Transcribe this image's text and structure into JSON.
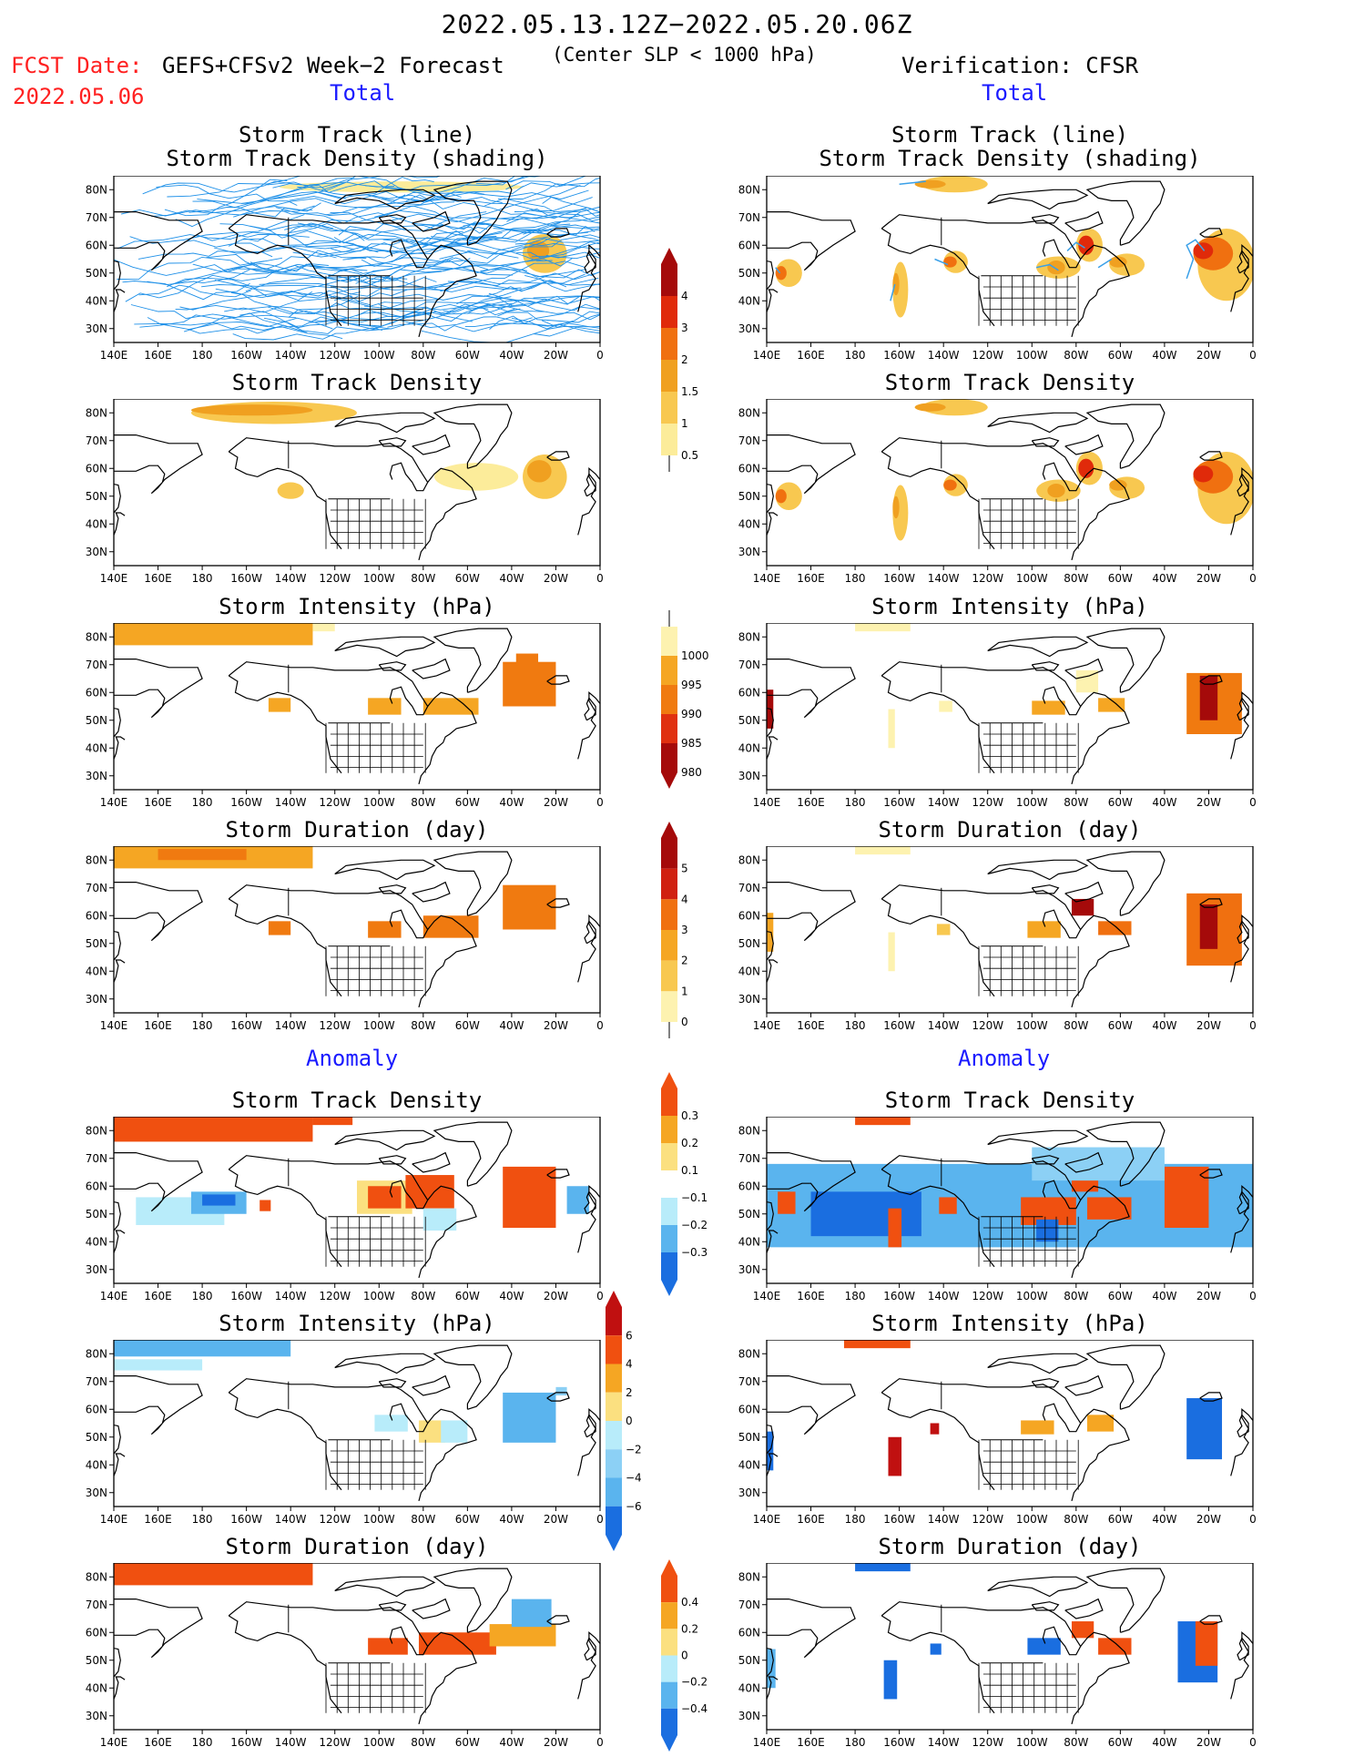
{
  "header": {
    "period": "2022.05.13.12Z−2022.05.20.06Z",
    "fcst_label": "FCST Date:",
    "fcst_date": "2022.05.06",
    "forecast_model": "GEFS+CFSv2 Week−2 Forecast",
    "criterion": "(Center SLP < 1000 hPa)",
    "verification": "Verification: CFSR"
  },
  "section_labels": {
    "total": "Total",
    "anomaly": "Anomaly"
  },
  "map_axes": {
    "lon_ticks": [
      "140E",
      "160E",
      "180",
      "160W",
      "140W",
      "120W",
      "100W",
      "80W",
      "60W",
      "40W",
      "20W",
      "0"
    ],
    "lat_ticks": [
      "80N",
      "70N",
      "60N",
      "50N",
      "40N",
      "30N"
    ]
  },
  "colorbars": {
    "density": {
      "ticks": [
        "4",
        "3",
        "2",
        "1.5",
        "1",
        "0.5"
      ],
      "colors": [
        "#a50a0a",
        "#e02a0a",
        "#f07010",
        "#f0a020",
        "#f8c850",
        "#fcec9a"
      ]
    },
    "intensity": {
      "ticks": [
        "1000",
        "995",
        "990",
        "985",
        "980"
      ],
      "colors": [
        "#fdf2b0",
        "#f5a623",
        "#f07a10",
        "#e03010",
        "#a50a0a"
      ]
    },
    "duration": {
      "ticks": [
        "5",
        "4",
        "3",
        "2",
        "1",
        "0"
      ],
      "colors": [
        "#a50a0a",
        "#d02010",
        "#f07010",
        "#f5a623",
        "#f8c850",
        "#fdf2b0"
      ]
    },
    "density_anom": {
      "ticks": [
        "0.3",
        "0.2",
        "0.1",
        "−0.1",
        "−0.2",
        "−0.3"
      ],
      "colors": [
        "#f05010",
        "#f5a623",
        "#fbe080",
        "#ffffff",
        "#b8ecfa",
        "#5ab4ee",
        "#1a6ee0"
      ]
    },
    "intensity_anom": {
      "ticks": [
        "6",
        "4",
        "2",
        "0",
        "−2",
        "−4",
        "−6"
      ],
      "colors": [
        "#c01010",
        "#f05010",
        "#f5a623",
        "#fbe080",
        "#b8ecfa",
        "#8cd0f5",
        "#5ab4ee",
        "#1a6ee0"
      ]
    },
    "duration_anom": {
      "ticks": [
        "0.4",
        "0.2",
        "0",
        "−0.2",
        "−0.4"
      ],
      "colors": [
        "#f05010",
        "#f5a623",
        "#fbe080",
        "#b8ecfa",
        "#5ab4ee",
        "#1a6ee0"
      ]
    }
  },
  "panels": {
    "fc_track": {
      "title1": "Storm Track (line)",
      "title2": "Storm Track Density (shading)"
    },
    "ob_track": {
      "title1": "Storm Track (line)",
      "title2": "Storm Track Density (shading)"
    },
    "fc_density": {
      "title1": "Storm Track Density"
    },
    "ob_density": {
      "title1": "Storm Track Density"
    },
    "fc_intensity": {
      "title1": "Storm Intensity (hPa)"
    },
    "ob_intensity": {
      "title1": "Storm Intensity (hPa)"
    },
    "fc_duration": {
      "title1": "Storm Duration (day)"
    },
    "ob_duration": {
      "title1": "Storm Duration (day)"
    },
    "fa_density": {
      "title1": "Storm Track Density"
    },
    "oa_density": {
      "title1": "Storm Track Density"
    },
    "fa_intensity": {
      "title1": "Storm Intensity (hPa)"
    },
    "oa_intensity": {
      "title1": "Storm Intensity (hPa)"
    },
    "fa_duration": {
      "title1": "Storm Duration (day)"
    },
    "oa_duration": {
      "title1": "Storm Duration (day)"
    }
  }
}
